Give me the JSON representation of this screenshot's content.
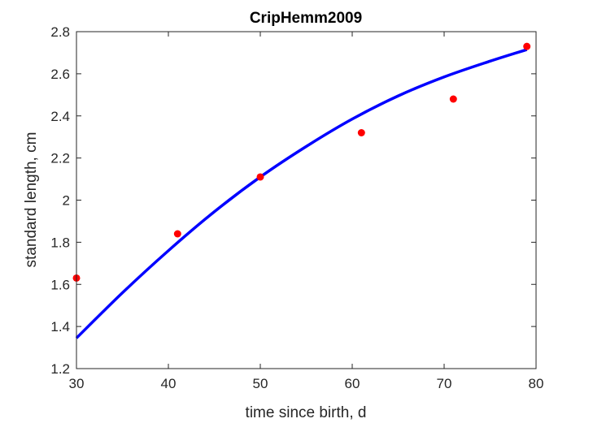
{
  "chart_data": {
    "type": "scatter",
    "title": "CripHemm2009",
    "xlabel": "time since  birth, d",
    "ylabel": "standard length, cm",
    "xlim": [
      30,
      80
    ],
    "ylim": [
      1.2,
      2.8
    ],
    "xticks": [
      "30",
      "40",
      "50",
      "60",
      "70",
      "80"
    ],
    "yticks": [
      "1.2",
      "1.4",
      "1.6",
      "1.8",
      "2",
      "2.2",
      "2.4",
      "2.6",
      "2.8"
    ],
    "grid": false,
    "series": [
      {
        "kind": "points",
        "color": "#ff0000",
        "x": [
          30,
          41,
          50,
          61,
          71,
          79
        ],
        "y": [
          1.63,
          1.84,
          2.11,
          2.32,
          2.48,
          2.73
        ]
      },
      {
        "kind": "line",
        "color": "#0000ff",
        "x": [
          30,
          35,
          40,
          45,
          50,
          55,
          60,
          65,
          70,
          75,
          79
        ],
        "y": [
          1.345,
          1.56,
          1.76,
          1.945,
          2.11,
          2.255,
          2.385,
          2.495,
          2.585,
          2.66,
          2.715
        ]
      }
    ]
  }
}
